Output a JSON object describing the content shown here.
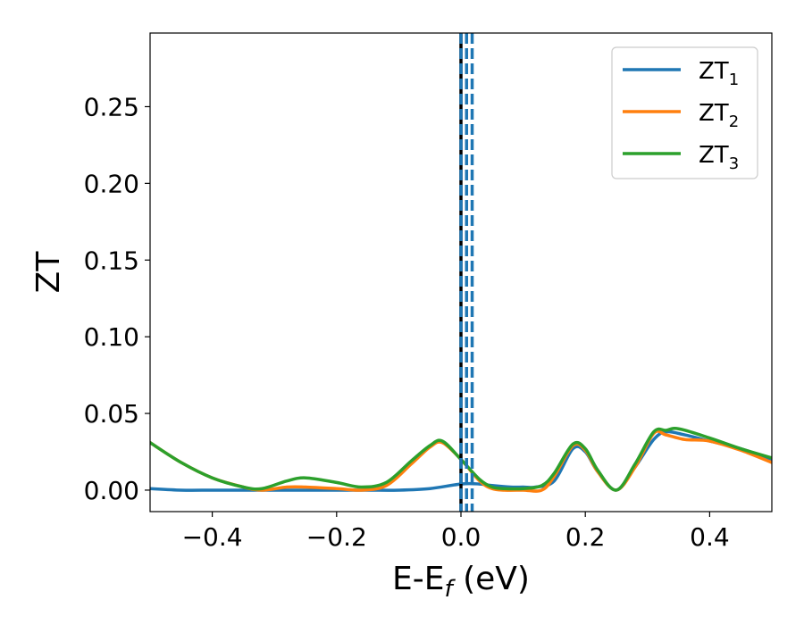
{
  "chart_data": {
    "type": "line",
    "xlabel": {
      "main": "E-E",
      "sub": "f",
      "suffix": " (eV)"
    },
    "ylabel": "ZT",
    "xlim": [
      -0.5,
      0.5
    ],
    "ylim": [
      -0.014,
      0.298
    ],
    "xticks": [
      {
        "value": -0.4,
        "label": "−0.4"
      },
      {
        "value": -0.2,
        "label": "−0.2"
      },
      {
        "value": 0.0,
        "label": "0.0"
      },
      {
        "value": 0.2,
        "label": "0.2"
      },
      {
        "value": 0.4,
        "label": "0.4"
      }
    ],
    "yticks": [
      {
        "value": 0.0,
        "label": "0.00"
      },
      {
        "value": 0.05,
        "label": "0.05"
      },
      {
        "value": 0.1,
        "label": "0.10"
      },
      {
        "value": 0.15,
        "label": "0.15"
      },
      {
        "value": 0.2,
        "label": "0.20"
      },
      {
        "value": 0.25,
        "label": "0.25"
      }
    ],
    "grid": false,
    "legend_position": "top-right",
    "vlines": [
      {
        "x": 0.0,
        "color": "#000000",
        "style": "solid"
      },
      {
        "x": 0.0,
        "color": "#1f77b4",
        "style": "dashed"
      },
      {
        "x": 0.009,
        "color": "#1f77b4",
        "style": "dashed"
      },
      {
        "x": 0.018,
        "color": "#1f77b4",
        "style": "dashed"
      }
    ],
    "series": [
      {
        "name": "ZT",
        "sub": "1",
        "color": "#1f77b4",
        "x": [
          -0.5,
          -0.45,
          -0.4,
          -0.35,
          -0.3,
          -0.25,
          -0.2,
          -0.15,
          -0.1,
          -0.05,
          0.0,
          0.03,
          0.05,
          0.08,
          0.1,
          0.12,
          0.15,
          0.18,
          0.2,
          0.22,
          0.25,
          0.28,
          0.31,
          0.33,
          0.36,
          0.4,
          0.45,
          0.5
        ],
        "y": [
          0.001,
          0.0,
          0.0,
          0.0,
          0.0,
          0.0,
          0.0,
          0.0,
          0.0,
          0.001,
          0.004,
          0.004,
          0.003,
          0.002,
          0.002,
          0.002,
          0.006,
          0.027,
          0.025,
          0.012,
          0.0,
          0.015,
          0.033,
          0.038,
          0.036,
          0.032,
          0.027,
          0.02
        ]
      },
      {
        "name": "ZT",
        "sub": "2",
        "color": "#ff7f0e",
        "x": [
          -0.5,
          -0.45,
          -0.4,
          -0.35,
          -0.32,
          -0.28,
          -0.25,
          -0.2,
          -0.16,
          -0.12,
          -0.08,
          -0.05,
          -0.03,
          0.0,
          0.03,
          0.05,
          0.07,
          0.1,
          0.13,
          0.15,
          0.18,
          0.2,
          0.22,
          0.25,
          0.28,
          0.31,
          0.33,
          0.36,
          0.4,
          0.45,
          0.5
        ],
        "y": [
          0.031,
          0.018,
          0.008,
          0.002,
          0.0,
          0.002,
          0.002,
          0.001,
          0.0,
          0.003,
          0.017,
          0.028,
          0.031,
          0.02,
          0.006,
          0.001,
          0.0,
          0.0,
          0.0,
          0.009,
          0.029,
          0.026,
          0.012,
          0.0,
          0.015,
          0.037,
          0.036,
          0.033,
          0.032,
          0.026,
          0.018
        ]
      },
      {
        "name": "ZT",
        "sub": "3",
        "color": "#2ca02c",
        "x": [
          -0.5,
          -0.45,
          -0.4,
          -0.35,
          -0.32,
          -0.28,
          -0.25,
          -0.2,
          -0.16,
          -0.12,
          -0.08,
          -0.05,
          -0.03,
          0.0,
          0.03,
          0.05,
          0.07,
          0.1,
          0.13,
          0.15,
          0.18,
          0.2,
          0.22,
          0.25,
          0.28,
          0.31,
          0.33,
          0.35,
          0.4,
          0.45,
          0.5
        ],
        "y": [
          0.031,
          0.018,
          0.008,
          0.002,
          0.001,
          0.006,
          0.008,
          0.005,
          0.002,
          0.005,
          0.019,
          0.029,
          0.032,
          0.02,
          0.007,
          0.002,
          0.001,
          0.001,
          0.003,
          0.011,
          0.03,
          0.027,
          0.013,
          0.0,
          0.017,
          0.038,
          0.039,
          0.04,
          0.034,
          0.027,
          0.021
        ]
      }
    ]
  }
}
